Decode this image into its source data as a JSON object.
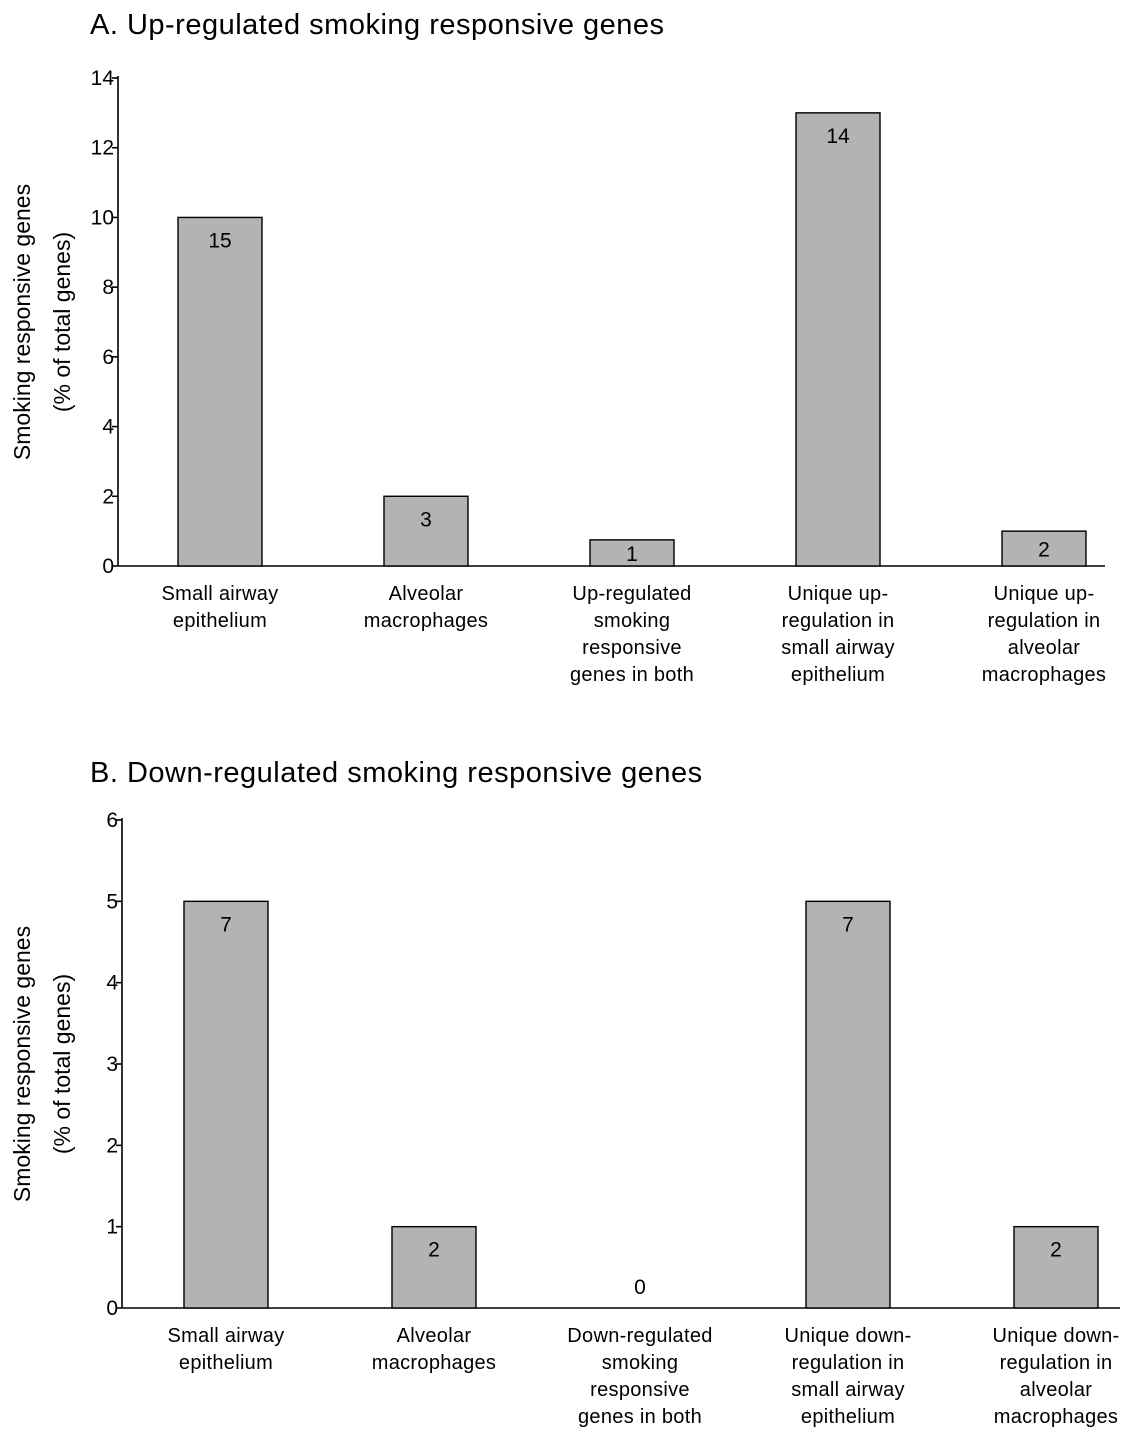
{
  "chart_data": [
    {
      "type": "bar",
      "title": "A. Up-regulated smoking responsive genes",
      "ylabel": [
        "Smoking responsive genes",
        "(% of total genes)"
      ],
      "xlabel": "",
      "ylim": [
        0,
        14
      ],
      "yticks": [
        0,
        2,
        4,
        6,
        8,
        10,
        12,
        14
      ],
      "categories": [
        [
          "Small airway",
          "epithelium"
        ],
        [
          "Alveolar",
          "macrophages"
        ],
        [
          "Up-regulated",
          "smoking",
          "responsive",
          "genes in both"
        ],
        [
          "Unique up-",
          "regulation in",
          "small airway",
          "epithelium"
        ],
        [
          "Unique up-",
          "regulation in",
          "alveolar",
          "macrophages"
        ]
      ],
      "values": [
        10.0,
        2.0,
        0.75,
        13.0,
        1.0
      ],
      "data_labels": [
        "15",
        "3",
        "1",
        "14",
        "2"
      ],
      "bar_color": "#b3b3b3",
      "grid": false,
      "legend": "none"
    },
    {
      "type": "bar",
      "title": "B. Down-regulated smoking responsive genes",
      "ylabel": [
        "Smoking responsive genes",
        "(% of total genes)"
      ],
      "xlabel": "",
      "ylim": [
        0,
        6
      ],
      "yticks": [
        0,
        1,
        2,
        3,
        4,
        5,
        6
      ],
      "categories": [
        [
          "Small airway",
          "epithelium"
        ],
        [
          "Alveolar",
          "macrophages"
        ],
        [
          "Down-regulated",
          "smoking",
          "responsive",
          "genes in both"
        ],
        [
          "Unique down-",
          "regulation in",
          "small airway",
          "epithelium"
        ],
        [
          "Unique down-",
          "regulation in",
          "alveolar",
          "macrophages"
        ]
      ],
      "values": [
        5.0,
        1.0,
        0.0,
        5.0,
        1.0
      ],
      "data_labels": [
        "7",
        "2",
        "0",
        "7",
        "2"
      ],
      "bar_color": "#b3b3b3",
      "grid": false,
      "legend": "none"
    }
  ]
}
